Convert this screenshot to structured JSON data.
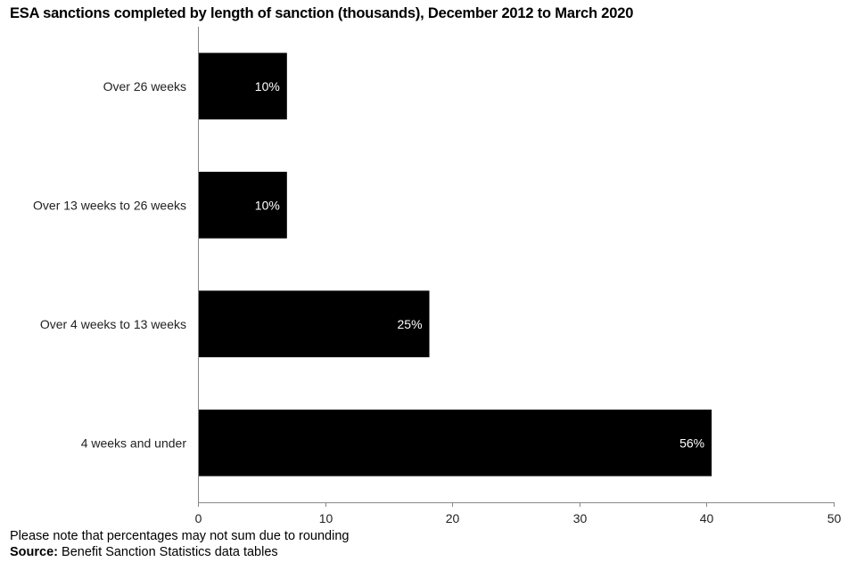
{
  "chart_data": {
    "type": "bar",
    "orientation": "horizontal",
    "title": "ESA sanctions completed by length of sanction (thousands), December 2012 to March 2020",
    "categories": [
      "Over 26 weeks",
      "Over 13 weeks to 26 weeks",
      "Over 4 weeks to 13 weeks",
      "4 weeks and under"
    ],
    "values": [
      7.0,
      7.0,
      18.2,
      40.4
    ],
    "data_labels": [
      "10%",
      "10%",
      "25%",
      "56%"
    ],
    "xlim": [
      0,
      50
    ],
    "xticks": [
      0,
      10,
      20,
      30,
      40,
      50
    ],
    "grid": false,
    "bar_color": "#000000",
    "label_color": "#ffffff"
  },
  "footnote": "Please note that percentages may not sum due to rounding",
  "source": {
    "label": "Source:",
    "text": " Benefit Sanction Statistics data tables"
  }
}
